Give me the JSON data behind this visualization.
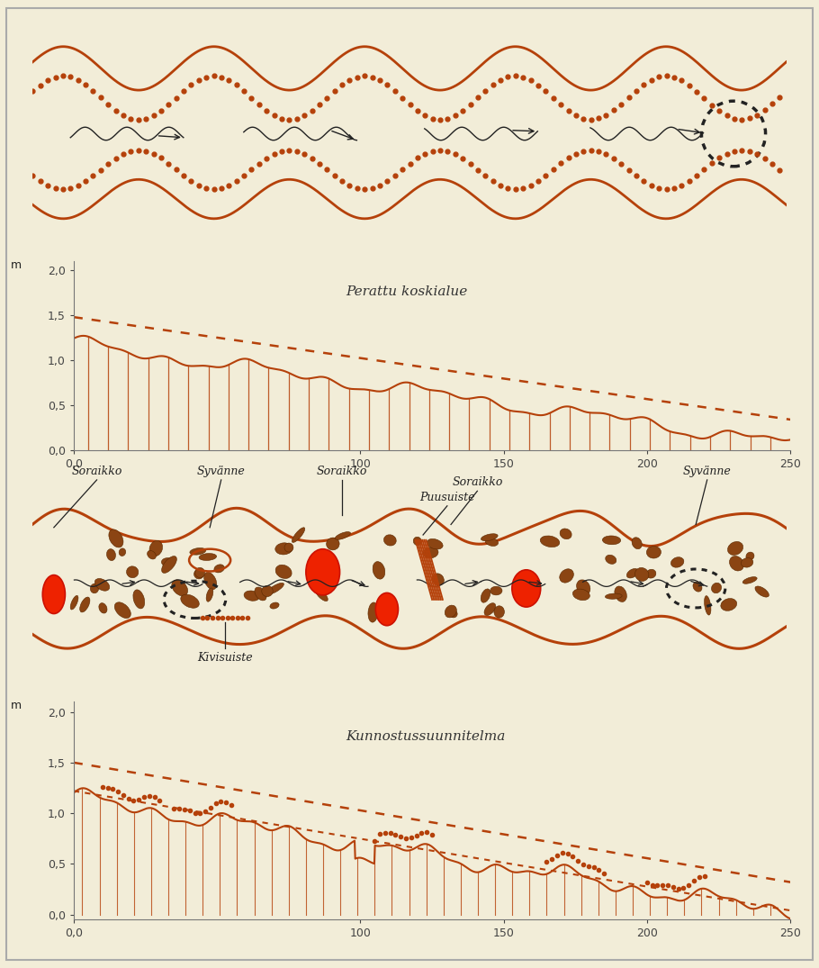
{
  "bg_color": "#f2edd8",
  "river_color": "#b5410a",
  "rock_color": "#7a3010",
  "red_color": "#ee2200",
  "dark_color": "#222222",
  "title1": "Perattu koskialue",
  "title2": "Kunnostussuunnitelma",
  "yticks": [
    0.0,
    0.5,
    1.0,
    1.5,
    2.0
  ],
  "xtick_labels": [
    "0,0",
    "100",
    "150",
    "200",
    "250"
  ]
}
